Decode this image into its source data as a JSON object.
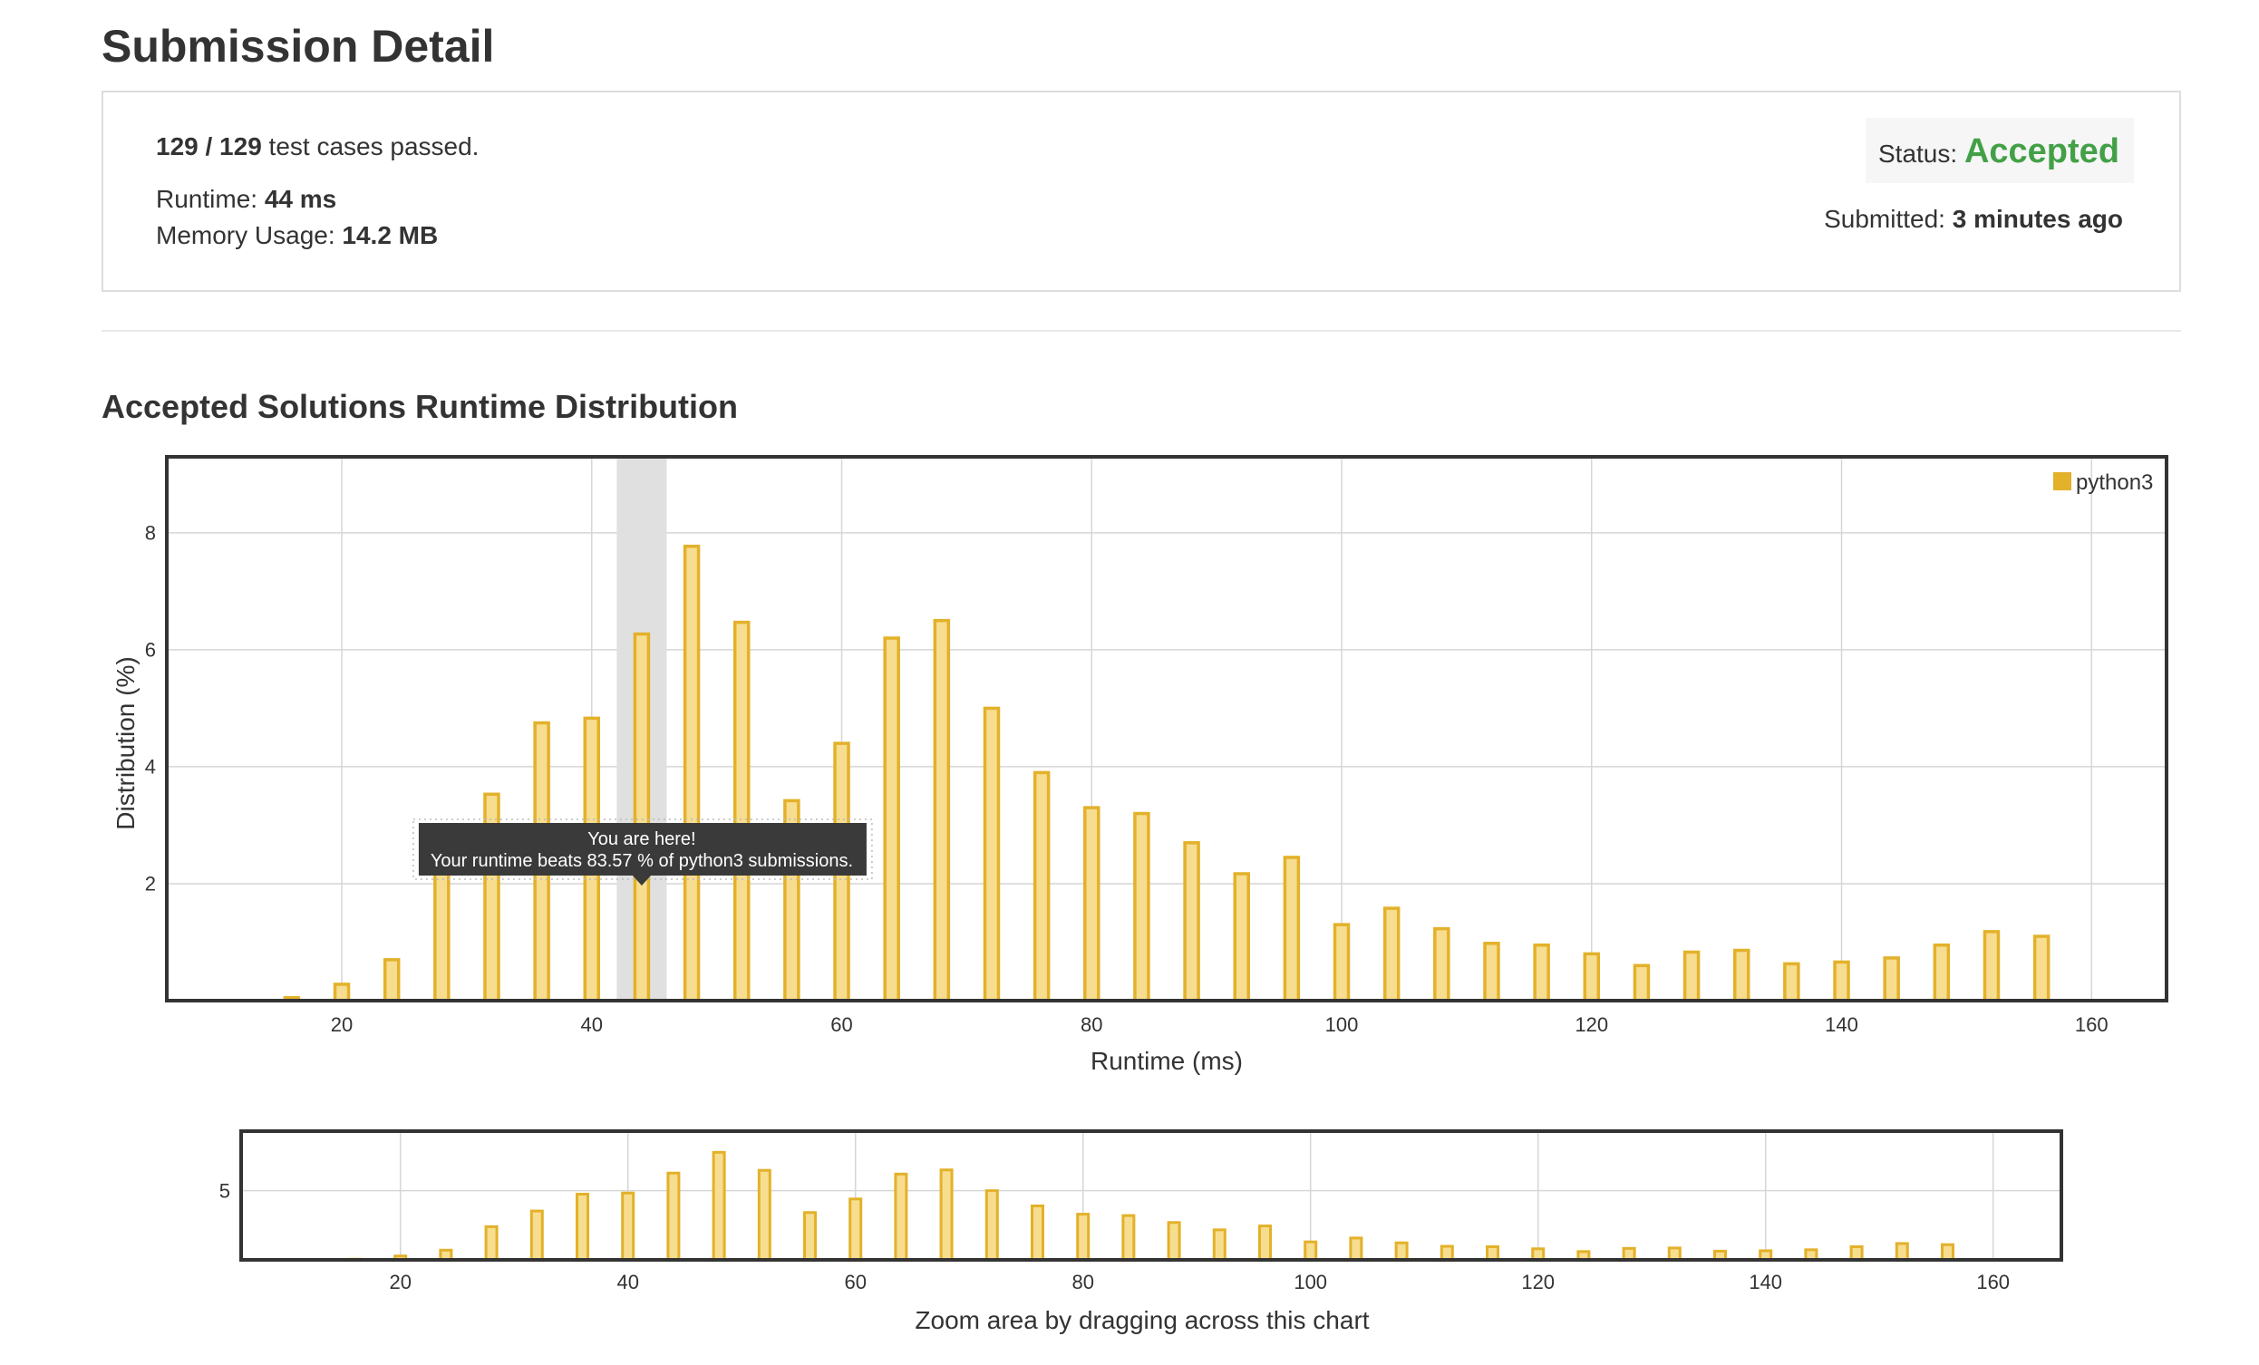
{
  "page": {
    "title": "Submission Detail"
  },
  "submission": {
    "test_cases_count": "129 / 129",
    "test_cases_suffix": " test cases passed.",
    "runtime_label": "Runtime: ",
    "runtime_value": "44 ms",
    "memory_label": "Memory Usage: ",
    "memory_value": "14.2 MB",
    "status_label": "Status: ",
    "status_value": "Accepted",
    "submitted_label": "Submitted: ",
    "submitted_value": "3 minutes ago"
  },
  "colors": {
    "accepted": "#43a047",
    "bar_fill": "#f7dd8f",
    "bar_stroke": "#e3b12a",
    "legend_swatch": "#e3b12a",
    "highlight": "#e0e0e0",
    "tooltip_bg": "#3a3a3a"
  },
  "distribution": {
    "section_title": "Accepted Solutions Runtime Distribution",
    "tooltip": {
      "line1": "You are here!",
      "line2": "Your runtime beats 83.57 % of python3 submissions."
    }
  },
  "chart_data": [
    {
      "type": "bar",
      "xlabel": "Runtime (ms)",
      "ylabel": "Distribution (%)",
      "xlim": [
        6,
        166
      ],
      "ylim": [
        0,
        9.3
      ],
      "x_ticks": [
        20,
        40,
        60,
        80,
        100,
        120,
        140,
        160
      ],
      "y_ticks": [
        2,
        4,
        6,
        8
      ],
      "grid": true,
      "legend_position": "top-right",
      "highlight_range": [
        42,
        46
      ],
      "x": [
        16,
        20,
        24,
        28,
        32,
        36,
        40,
        44,
        48,
        52,
        56,
        60,
        64,
        68,
        72,
        76,
        80,
        84,
        88,
        92,
        96,
        100,
        104,
        108,
        112,
        116,
        120,
        124,
        128,
        132,
        136,
        140,
        144,
        148,
        152,
        156
      ],
      "series": [
        {
          "name": "python3",
          "values": [
            0.05,
            0.28,
            0.7,
            2.4,
            3.53,
            4.75,
            4.83,
            6.27,
            7.77,
            6.47,
            3.42,
            4.4,
            6.2,
            6.5,
            5.0,
            3.9,
            3.3,
            3.2,
            2.7,
            2.17,
            2.45,
            1.3,
            1.58,
            1.23,
            0.98,
            0.95,
            0.8,
            0.6,
            0.83,
            0.86,
            0.63,
            0.66,
            0.73,
            0.95,
            1.18,
            1.1
          ]
        }
      ]
    },
    {
      "type": "bar",
      "xlabel": "Zoom area by dragging across this chart",
      "xlim": [
        6,
        166
      ],
      "ylim": [
        0,
        9.3
      ],
      "x_ticks": [
        20,
        40,
        60,
        80,
        100,
        120,
        140,
        160
      ],
      "y_ticks": [
        5
      ],
      "grid": true
    }
  ]
}
